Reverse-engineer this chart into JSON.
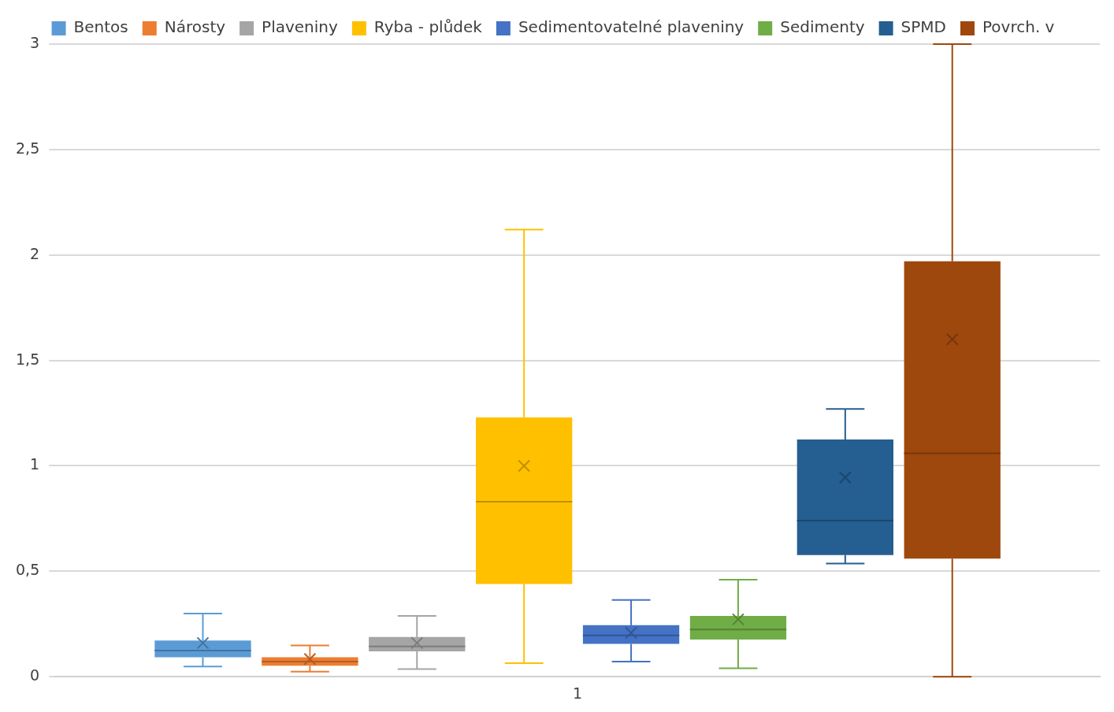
{
  "chart_data": {
    "type": "box",
    "categories": [
      "1"
    ],
    "series": [
      {
        "name": "Bentos",
        "color": "#5b9bd5",
        "boxes": [
          {
            "low": 0.048,
            "q1": 0.092,
            "median": 0.124,
            "q3": 0.172,
            "high": 0.3,
            "mean": 0.16
          }
        ]
      },
      {
        "name": "Nárosty",
        "color": "#ed7d31",
        "boxes": [
          {
            "low": 0.024,
            "q1": 0.052,
            "median": 0.072,
            "q3": 0.092,
            "high": 0.148,
            "mean": 0.084
          }
        ]
      },
      {
        "name": "Plaveniny",
        "color": "#a5a5a5",
        "boxes": [
          {
            "low": 0.036,
            "q1": 0.12,
            "median": 0.144,
            "q3": 0.188,
            "high": 0.288,
            "mean": 0.16
          }
        ]
      },
      {
        "name": "Ryba - plůdek",
        "color": "#ffc000",
        "boxes": [
          {
            "low": 0.064,
            "q1": 0.44,
            "median": 0.83,
            "q3": 1.23,
            "high": 2.12,
            "mean": 1.0
          }
        ]
      },
      {
        "name": "Sedimentovatelné plaveniny",
        "color": "#4472c4",
        "boxes": [
          {
            "low": 0.072,
            "q1": 0.156,
            "median": 0.196,
            "q3": 0.244,
            "high": 0.364,
            "mean": 0.208
          }
        ]
      },
      {
        "name": "Sedimenty",
        "color": "#70ad47",
        "boxes": [
          {
            "low": 0.04,
            "q1": 0.176,
            "median": 0.224,
            "q3": 0.288,
            "high": 0.46,
            "mean": 0.272
          }
        ]
      },
      {
        "name": "SPMD",
        "color": "#255e91",
        "boxes": [
          {
            "low": 0.537,
            "q1": 0.577,
            "median": 0.74,
            "q3": 1.125,
            "high": 1.27,
            "mean": 0.945
          }
        ]
      },
      {
        "name": "Povrch. v",
        "color": "#9e480e",
        "boxes": [
          {
            "low": 0,
            "q1": 0.56,
            "median": 1.06,
            "q3": 1.97,
            "high": 3,
            "mean": 1.6
          }
        ]
      }
    ],
    "ylim": [
      0,
      3
    ],
    "yticks": [
      {
        "value": 0,
        "label": "0"
      },
      {
        "value": 0.5,
        "label": "0,5"
      },
      {
        "value": 1,
        "label": "1"
      },
      {
        "value": 1.5,
        "label": "1,5"
      },
      {
        "value": 2,
        "label": "2"
      },
      {
        "value": 2.5,
        "label": "2,5"
      },
      {
        "value": 3,
        "label": "3"
      }
    ],
    "grid": "y",
    "legend": "top"
  }
}
